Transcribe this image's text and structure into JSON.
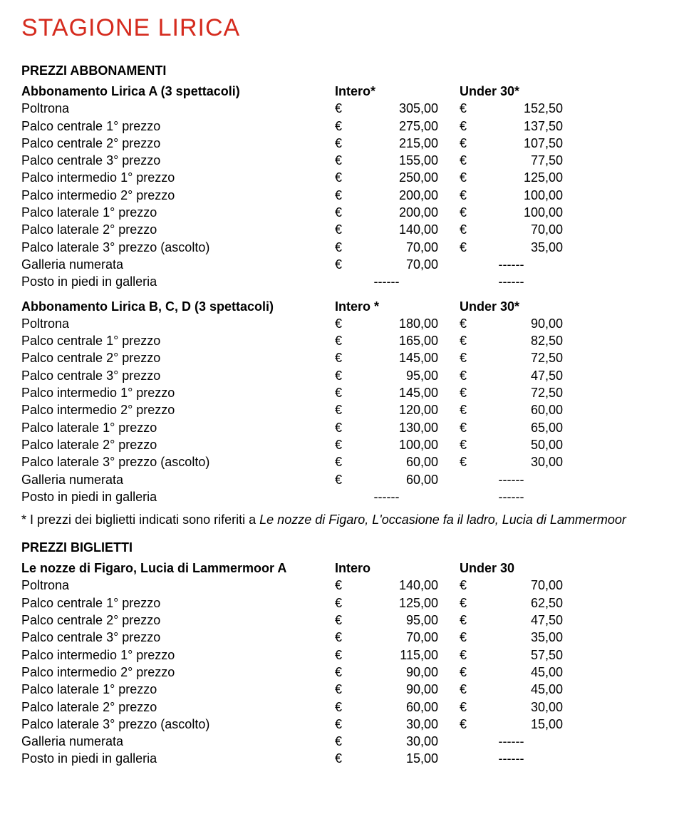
{
  "title": "STAGIONE LIRICA",
  "currency": "€",
  "dash": "------",
  "section_abbon": "PREZZI ABBONAMENTI",
  "section_bigl": "PREZZI BIGLIETTI",
  "tableA": {
    "header_label": "Abbonamento Lirica A (3 spettacoli)",
    "header_c1": "Intero*",
    "header_c2": "Under 30*",
    "rows": [
      {
        "label": "Poltrona",
        "v1": "305,00",
        "v2": "152,50"
      },
      {
        "label": "Palco centrale 1° prezzo",
        "v1": "275,00",
        "v2": "137,50"
      },
      {
        "label": "Palco centrale 2° prezzo",
        "v1": "215,00",
        "v2": "107,50"
      },
      {
        "label": "Palco centrale 3° prezzo",
        "v1": "155,00",
        "v2": "77,50"
      },
      {
        "label": "Palco intermedio 1° prezzo",
        "v1": "250,00",
        "v2": "125,00"
      },
      {
        "label": "Palco intermedio 2° prezzo",
        "v1": "200,00",
        "v2": "100,00"
      },
      {
        "label": "Palco laterale 1° prezzo",
        "v1": "200,00",
        "v2": "100,00"
      },
      {
        "label": "Palco laterale 2° prezzo",
        "v1": "140,00",
        "v2": "70,00"
      },
      {
        "label": "Palco laterale 3° prezzo (ascolto)",
        "v1": "70,00",
        "v2": "35,00"
      },
      {
        "label": "Galleria numerata",
        "v1": "70,00",
        "dash2": true
      },
      {
        "label": "Posto in piedi in galleria",
        "dash1": true,
        "dash2": true
      }
    ]
  },
  "tableB": {
    "header_label": "Abbonamento Lirica B, C, D (3 spettacoli)",
    "header_c1": "Intero *",
    "header_c2": "Under 30*",
    "rows": [
      {
        "label": "Poltrona",
        "v1": "180,00",
        "v2": "90,00"
      },
      {
        "label": "Palco centrale 1° prezzo",
        "v1": "165,00",
        "v2": "82,50"
      },
      {
        "label": "Palco centrale 2° prezzo",
        "v1": "145,00",
        "v2": "72,50"
      },
      {
        "label": "Palco centrale 3° prezzo",
        "v1": "95,00",
        "v2": "47,50"
      },
      {
        "label": "Palco intermedio 1° prezzo",
        "v1": "145,00",
        "v2": "72,50"
      },
      {
        "label": "Palco intermedio 2° prezzo",
        "v1": "120,00",
        "v2": "60,00"
      },
      {
        "label": "Palco laterale 1° prezzo",
        "v1": "130,00",
        "v2": "65,00"
      },
      {
        "label": "Palco laterale 2° prezzo",
        "v1": "100,00",
        "v2": "50,00"
      },
      {
        "label": "Palco laterale 3° prezzo (ascolto)",
        "v1": "60,00",
        "v2": "30,00"
      },
      {
        "label": "Galleria numerata",
        "v1": "60,00",
        "dash2": true
      },
      {
        "label": "Posto in piedi in galleria",
        "dash1": true,
        "dash2": true
      }
    ]
  },
  "footnote_prefix": "* I prezzi dei biglietti indicati sono riferiti a ",
  "footnote_italic": "Le nozze di Figaro, L'occasione fa il ladro, Lucia di Lammermoor",
  "tableC": {
    "header_label": "Le nozze di Figaro, Lucia di Lammermoor A",
    "header_c1": "Intero",
    "header_c2": "Under 30",
    "rows": [
      {
        "label": "Poltrona",
        "v1": "140,00",
        "v2": "70,00"
      },
      {
        "label": "Palco centrale 1° prezzo",
        "v1": "125,00",
        "v2": "62,50"
      },
      {
        "label": "Palco centrale 2° prezzo",
        "v1": "95,00",
        "v2": "47,50"
      },
      {
        "label": "Palco centrale 3° prezzo",
        "v1": "70,00",
        "v2": "35,00"
      },
      {
        "label": "Palco intermedio 1° prezzo",
        "v1": "115,00",
        "v2": "57,50"
      },
      {
        "label": "Palco intermedio 2° prezzo",
        "v1": "90,00",
        "v2": "45,00"
      },
      {
        "label": "Palco laterale 1° prezzo",
        "v1": "90,00",
        "v2": "45,00"
      },
      {
        "label": "Palco laterale 2° prezzo",
        "v1": "60,00",
        "v2": "30,00"
      },
      {
        "label": "Palco laterale 3° prezzo (ascolto)",
        "v1": "30,00",
        "v2": "15,00"
      },
      {
        "label": "Galleria numerata",
        "v1": "30,00",
        "dash2": true
      },
      {
        "label": "Posto in piedi in galleria",
        "v1": "15,00",
        "dash2": true
      }
    ]
  }
}
